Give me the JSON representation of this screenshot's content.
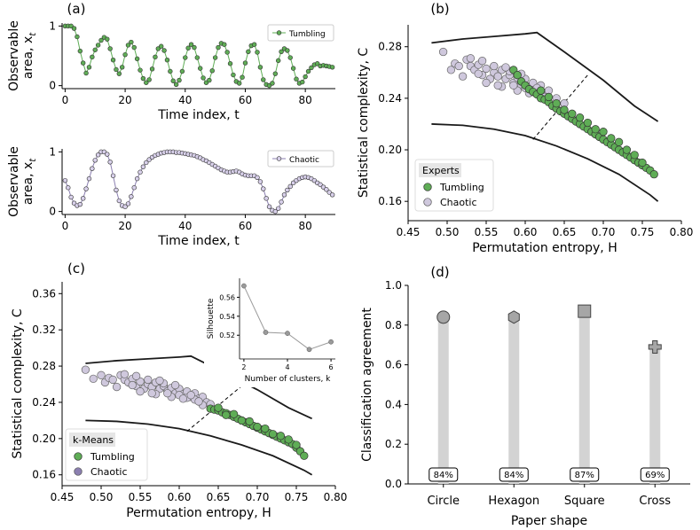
{
  "colors": {
    "tumbling": "#5fad56",
    "chaotic_light": "#cfc8dd",
    "chaotic_dark": "#8b7fb0",
    "inset": "#9a9a9a",
    "bar": "#d3d3d3",
    "bound": "#1a1a1a"
  },
  "chart_data": [
    {
      "id": "a_top",
      "panel_label": "(a)",
      "type": "line",
      "title": "",
      "xlabel": "Time index, t",
      "ylabel_line1": "Observable",
      "ylabel_line2": "area, x",
      "ylabel_sub": "t",
      "xlim": [
        -1,
        90
      ],
      "ylim": [
        -0.05,
        1.05
      ],
      "xticks": [
        0,
        20,
        40,
        60,
        80
      ],
      "yticks": [
        0,
        1
      ],
      "legend": "Tumbling",
      "legend_position": "top-right",
      "series_name": "Tumbling",
      "x": [
        0,
        1,
        2,
        3,
        4,
        5,
        6,
        7,
        8,
        9,
        10,
        11,
        12,
        13,
        14,
        15,
        16,
        17,
        18,
        19,
        20,
        21,
        22,
        23,
        24,
        25,
        26,
        27,
        28,
        29,
        30,
        31,
        32,
        33,
        34,
        35,
        36,
        37,
        38,
        39,
        40,
        41,
        42,
        43,
        44,
        45,
        46,
        47,
        48,
        49,
        50,
        51,
        52,
        53,
        54,
        55,
        56,
        57,
        58,
        59,
        60,
        61,
        62,
        63,
        64,
        65,
        66,
        67,
        68,
        69,
        70,
        71,
        72,
        73,
        74,
        75,
        76,
        77,
        78,
        79,
        80,
        81,
        82,
        83,
        84,
        85,
        86,
        87,
        88,
        89
      ],
      "y": [
        1.0,
        1.0,
        1.0,
        0.96,
        0.82,
        0.58,
        0.38,
        0.21,
        0.31,
        0.48,
        0.6,
        0.68,
        0.76,
        0.81,
        0.78,
        0.62,
        0.43,
        0.27,
        0.2,
        0.31,
        0.52,
        0.68,
        0.73,
        0.64,
        0.45,
        0.26,
        0.12,
        0.05,
        0.1,
        0.28,
        0.48,
        0.62,
        0.66,
        0.59,
        0.43,
        0.24,
        0.08,
        0.02,
        0.09,
        0.24,
        0.47,
        0.63,
        0.69,
        0.64,
        0.47,
        0.29,
        0.13,
        0.05,
        0.09,
        0.25,
        0.47,
        0.64,
        0.71,
        0.69,
        0.56,
        0.37,
        0.18,
        0.07,
        0.04,
        0.14,
        0.38,
        0.57,
        0.67,
        0.69,
        0.56,
        0.31,
        0.1,
        0.02,
        0.0,
        0.04,
        0.2,
        0.42,
        0.57,
        0.62,
        0.59,
        0.47,
        0.29,
        0.11,
        0.04,
        0.06,
        0.15,
        0.24,
        0.3,
        0.35,
        0.37,
        0.33,
        0.34,
        0.33,
        0.32,
        0.31
      ]
    },
    {
      "id": "a_bottom",
      "type": "line",
      "title": "",
      "xlabel": "Time index, t",
      "ylabel_line1": "Observable",
      "ylabel_line2": "area, x",
      "ylabel_sub": "t",
      "xlim": [
        -1,
        90
      ],
      "ylim": [
        -0.05,
        1.05
      ],
      "xticks": [
        0,
        20,
        40,
        60,
        80
      ],
      "yticks": [
        0,
        1
      ],
      "legend": "Chaotic",
      "legend_position": "top-right",
      "series_name": "Chaotic",
      "x": [
        0,
        1,
        2,
        3,
        4,
        5,
        6,
        7,
        8,
        9,
        10,
        11,
        12,
        13,
        14,
        15,
        16,
        17,
        18,
        19,
        20,
        21,
        22,
        23,
        24,
        25,
        26,
        27,
        28,
        29,
        30,
        31,
        32,
        33,
        34,
        35,
        36,
        37,
        38,
        39,
        40,
        41,
        42,
        43,
        44,
        45,
        46,
        47,
        48,
        49,
        50,
        51,
        52,
        53,
        54,
        55,
        56,
        57,
        58,
        59,
        60,
        61,
        62,
        63,
        64,
        65,
        66,
        67,
        68,
        69,
        70,
        71,
        72,
        73,
        74,
        75,
        76,
        77,
        78,
        79,
        80,
        81,
        82,
        83,
        84,
        85,
        86,
        87,
        88,
        89
      ],
      "y": [
        0.52,
        0.4,
        0.24,
        0.14,
        0.1,
        0.12,
        0.22,
        0.38,
        0.55,
        0.72,
        0.86,
        0.95,
        1.0,
        1.0,
        0.96,
        0.83,
        0.6,
        0.36,
        0.18,
        0.1,
        0.08,
        0.13,
        0.25,
        0.4,
        0.55,
        0.66,
        0.75,
        0.82,
        0.87,
        0.91,
        0.94,
        0.96,
        0.98,
        0.99,
        1.0,
        1.0,
        1.0,
        0.99,
        0.99,
        0.98,
        0.97,
        0.96,
        0.95,
        0.94,
        0.92,
        0.9,
        0.87,
        0.85,
        0.82,
        0.79,
        0.76,
        0.73,
        0.7,
        0.68,
        0.66,
        0.66,
        0.67,
        0.68,
        0.66,
        0.63,
        0.61,
        0.6,
        0.6,
        0.6,
        0.57,
        0.5,
        0.38,
        0.22,
        0.08,
        0.02,
        0.0,
        0.05,
        0.16,
        0.28,
        0.36,
        0.42,
        0.48,
        0.52,
        0.55,
        0.57,
        0.58,
        0.57,
        0.55,
        0.52,
        0.48,
        0.45,
        0.41,
        0.37,
        0.32,
        0.28
      ]
    },
    {
      "id": "b",
      "panel_label": "(b)",
      "type": "scatter",
      "title": "",
      "xlabel": "Permutation entropy, H",
      "ylabel": "Statistical complexity, C",
      "xlim": [
        0.45,
        0.8
      ],
      "ylim": [
        0.145,
        0.297
      ],
      "xticks": [
        0.45,
        0.5,
        0.55,
        0.6,
        0.65,
        0.7,
        0.75,
        0.8
      ],
      "yticks": [
        0.16,
        0.2,
        0.24,
        0.28
      ],
      "legend_title": "Experts",
      "legend_position": "bottom-left",
      "series": [
        {
          "name": "Tumbling",
          "color_key": "tumbling",
          "H": [
            0.585,
            0.59,
            0.595,
            0.6,
            0.605,
            0.61,
            0.615,
            0.62,
            0.625,
            0.63,
            0.635,
            0.64,
            0.645,
            0.65,
            0.655,
            0.66,
            0.665,
            0.67,
            0.675,
            0.68,
            0.685,
            0.69,
            0.695,
            0.7,
            0.705,
            0.71,
            0.715,
            0.72,
            0.725,
            0.73,
            0.735,
            0.74,
            0.745,
            0.75,
            0.755,
            0.76,
            0.765,
            0.62,
            0.64,
            0.66,
            0.68,
            0.7,
            0.72,
            0.74,
            0.63,
            0.65,
            0.67,
            0.69,
            0.71,
            0.73,
            0.75
          ],
          "C": [
            0.262,
            0.258,
            0.253,
            0.25,
            0.247,
            0.245,
            0.243,
            0.24,
            0.239,
            0.237,
            0.234,
            0.232,
            0.23,
            0.228,
            0.226,
            0.224,
            0.222,
            0.22,
            0.218,
            0.216,
            0.214,
            0.212,
            0.21,
            0.208,
            0.206,
            0.204,
            0.202,
            0.2,
            0.198,
            0.196,
            0.194,
            0.192,
            0.19,
            0.188,
            0.186,
            0.184,
            0.181,
            0.246,
            0.236,
            0.228,
            0.221,
            0.214,
            0.206,
            0.196,
            0.241,
            0.231,
            0.225,
            0.216,
            0.209,
            0.2,
            0.19
          ]
        },
        {
          "name": "Chaotic",
          "color_key": "chaotic_light",
          "H": [
            0.495,
            0.505,
            0.51,
            0.52,
            0.525,
            0.53,
            0.535,
            0.54,
            0.545,
            0.55,
            0.555,
            0.56,
            0.565,
            0.57,
            0.575,
            0.58,
            0.585,
            0.59,
            0.595,
            0.6,
            0.605,
            0.61,
            0.615,
            0.62,
            0.625,
            0.63,
            0.64,
            0.65,
            0.53,
            0.54,
            0.55,
            0.56,
            0.57,
            0.58,
            0.59,
            0.6,
            0.61,
            0.62,
            0.545,
            0.565,
            0.585,
            0.605,
            0.625,
            0.515,
            0.575,
            0.595,
            0.615
          ],
          "C": [
            0.276,
            0.262,
            0.267,
            0.257,
            0.27,
            0.265,
            0.262,
            0.266,
            0.258,
            0.263,
            0.255,
            0.26,
            0.257,
            0.262,
            0.255,
            0.258,
            0.252,
            0.256,
            0.25,
            0.255,
            0.249,
            0.252,
            0.246,
            0.25,
            0.244,
            0.246,
            0.24,
            0.236,
            0.271,
            0.259,
            0.252,
            0.265,
            0.249,
            0.261,
            0.246,
            0.248,
            0.245,
            0.243,
            0.269,
            0.25,
            0.25,
            0.244,
            0.241,
            0.265,
            0.264,
            0.259,
            0.248
          ]
        }
      ],
      "upper_bound": {
        "H": [
          0.48,
          0.52,
          0.56,
          0.6,
          0.615,
          0.65,
          0.7,
          0.74,
          0.77
        ],
        "C": [
          0.283,
          0.286,
          0.288,
          0.29,
          0.291,
          0.276,
          0.254,
          0.234,
          0.222
        ]
      },
      "lower_bound": {
        "H": [
          0.48,
          0.52,
          0.56,
          0.6,
          0.64,
          0.68,
          0.72,
          0.76,
          0.77
        ],
        "C": [
          0.22,
          0.219,
          0.216,
          0.211,
          0.203,
          0.193,
          0.181,
          0.165,
          0.16
        ]
      },
      "divider": {
        "H": [
          0.61,
          0.68
        ],
        "C": [
          0.208,
          0.258
        ]
      }
    },
    {
      "id": "c",
      "panel_label": "(c)",
      "type": "scatter",
      "title": "",
      "xlabel": "Permutation entropy, H",
      "ylabel": "Statistical complexity, C",
      "xlim": [
        0.45,
        0.8
      ],
      "ylim": [
        0.148,
        0.373
      ],
      "xticks": [
        0.45,
        0.5,
        0.55,
        0.6,
        0.65,
        0.7,
        0.75,
        0.8
      ],
      "yticks": [
        0.16,
        0.2,
        0.24,
        0.28,
        0.32,
        0.36
      ],
      "legend_title": "k-Means",
      "legend_position": "bottom-left",
      "series": [
        {
          "name": "Tumbling",
          "color_key": "tumbling",
          "H": [
            0.64,
            0.645,
            0.65,
            0.655,
            0.66,
            0.665,
            0.67,
            0.675,
            0.68,
            0.685,
            0.69,
            0.695,
            0.7,
            0.705,
            0.71,
            0.715,
            0.72,
            0.725,
            0.73,
            0.735,
            0.74,
            0.745,
            0.75,
            0.755,
            0.76,
            0.65,
            0.67,
            0.69,
            0.71,
            0.73,
            0.75,
            0.66,
            0.68,
            0.7,
            0.72,
            0.74
          ],
          "C": [
            0.233,
            0.232,
            0.231,
            0.229,
            0.228,
            0.226,
            0.224,
            0.222,
            0.22,
            0.218,
            0.216,
            0.214,
            0.212,
            0.21,
            0.208,
            0.206,
            0.204,
            0.202,
            0.2,
            0.198,
            0.196,
            0.194,
            0.19,
            0.186,
            0.181,
            0.234,
            0.227,
            0.219,
            0.211,
            0.203,
            0.193,
            0.226,
            0.22,
            0.213,
            0.205,
            0.199
          ]
        },
        {
          "name": "Chaotic",
          "color_key": "chaotic_light",
          "H": [
            0.48,
            0.49,
            0.5,
            0.505,
            0.51,
            0.52,
            0.525,
            0.53,
            0.535,
            0.54,
            0.545,
            0.55,
            0.555,
            0.56,
            0.565,
            0.57,
            0.575,
            0.58,
            0.585,
            0.59,
            0.595,
            0.6,
            0.605,
            0.61,
            0.615,
            0.62,
            0.625,
            0.63,
            0.635,
            0.64,
            0.53,
            0.54,
            0.55,
            0.56,
            0.57,
            0.58,
            0.59,
            0.6,
            0.61,
            0.62,
            0.63,
            0.545,
            0.565,
            0.585,
            0.605,
            0.625,
            0.515,
            0.575,
            0.595,
            0.615
          ],
          "C": [
            0.276,
            0.266,
            0.27,
            0.262,
            0.267,
            0.257,
            0.27,
            0.265,
            0.262,
            0.266,
            0.258,
            0.263,
            0.255,
            0.26,
            0.257,
            0.262,
            0.255,
            0.258,
            0.252,
            0.256,
            0.25,
            0.255,
            0.249,
            0.252,
            0.246,
            0.25,
            0.244,
            0.246,
            0.24,
            0.238,
            0.271,
            0.259,
            0.252,
            0.265,
            0.249,
            0.261,
            0.246,
            0.248,
            0.245,
            0.243,
            0.237,
            0.269,
            0.25,
            0.25,
            0.244,
            0.241,
            0.265,
            0.264,
            0.259,
            0.248
          ]
        }
      ],
      "upper_bound": {
        "H": [
          0.48,
          0.52,
          0.56,
          0.6,
          0.615,
          0.65,
          0.7,
          0.74,
          0.77
        ],
        "C": [
          0.283,
          0.286,
          0.288,
          0.29,
          0.291,
          0.276,
          0.254,
          0.234,
          0.222
        ]
      },
      "lower_bound": {
        "H": [
          0.48,
          0.52,
          0.56,
          0.6,
          0.64,
          0.68,
          0.72,
          0.76,
          0.77
        ],
        "C": [
          0.22,
          0.219,
          0.216,
          0.211,
          0.203,
          0.193,
          0.181,
          0.165,
          0.16
        ]
      },
      "divider": {
        "H": [
          0.61,
          0.68
        ],
        "C": [
          0.208,
          0.258
        ]
      }
    },
    {
      "id": "c_inset",
      "type": "line",
      "title": "",
      "xlabel": "Number of clusters, k",
      "ylabel": "Silhouette",
      "xlim": [
        1.8,
        6.2
      ],
      "ylim": [
        0.495,
        0.58
      ],
      "xticks": [
        2,
        4,
        6
      ],
      "yticks": [
        0.52,
        0.54,
        0.56
      ],
      "x": [
        2,
        3,
        4,
        5,
        6
      ],
      "y": [
        0.572,
        0.523,
        0.522,
        0.505,
        0.513
      ]
    },
    {
      "id": "d",
      "panel_label": "(d)",
      "type": "bar",
      "title": "",
      "xlabel": "Paper shape",
      "ylabel": "Classification agreement",
      "ylim": [
        0,
        1
      ],
      "yticks": [
        0.0,
        0.2,
        0.4,
        0.6,
        0.8,
        1.0
      ],
      "categories": [
        "Circle",
        "Hexagon",
        "Square",
        "Cross"
      ],
      "values": [
        0.84,
        0.84,
        0.87,
        0.69
      ],
      "value_labels": [
        "84%",
        "84%",
        "87%",
        "69%"
      ],
      "markers": [
        "circle",
        "hexagon",
        "square",
        "cross"
      ]
    }
  ]
}
